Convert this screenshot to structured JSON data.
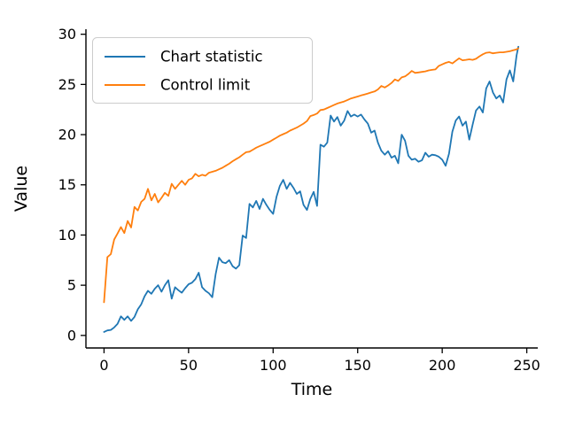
{
  "figure": {
    "background": "#ffffff",
    "text_color": "#000000",
    "axis_color": "#000000",
    "legend_border_color": "#cccccc",
    "legend_background": "#ffffff"
  },
  "chart_data": {
    "type": "line",
    "title": "",
    "xlabel": "Time",
    "ylabel": "Value",
    "xlim": [
      -10.7,
      256.5
    ],
    "ylim": [
      -1.25,
      30.5
    ],
    "xticks": [
      0,
      50,
      100,
      150,
      200,
      250
    ],
    "yticks": [
      0,
      5,
      10,
      15,
      20,
      25,
      30
    ],
    "grid": false,
    "legend": {
      "location": "upper left"
    },
    "x": [
      0,
      2,
      4,
      6,
      8,
      10,
      12,
      14,
      16,
      18,
      20,
      22,
      24,
      26,
      28,
      30,
      32,
      34,
      36,
      38,
      40,
      42,
      44,
      46,
      48,
      50,
      52,
      54,
      56,
      58,
      60,
      62,
      64,
      66,
      68,
      70,
      72,
      74,
      76,
      78,
      80,
      82,
      84,
      86,
      88,
      90,
      92,
      94,
      96,
      98,
      100,
      102,
      104,
      106,
      108,
      110,
      112,
      114,
      116,
      118,
      120,
      122,
      124,
      126,
      128,
      130,
      132,
      134,
      136,
      138,
      140,
      142,
      144,
      146,
      148,
      150,
      152,
      154,
      156,
      158,
      160,
      162,
      164,
      166,
      168,
      170,
      172,
      174,
      176,
      178,
      180,
      182,
      184,
      186,
      188,
      190,
      192,
      194,
      196,
      198,
      200,
      202,
      204,
      206,
      208,
      210,
      212,
      214,
      216,
      218,
      220,
      222,
      224,
      226,
      228,
      230,
      232,
      234,
      236,
      238,
      240,
      242,
      244,
      245
    ],
    "series": [
      {
        "name": "Chart statistic",
        "color": "#1f77b4",
        "values": [
          0.35,
          0.5,
          0.55,
          0.8,
          1.15,
          1.9,
          1.55,
          1.9,
          1.45,
          1.85,
          2.6,
          3.1,
          3.9,
          4.45,
          4.15,
          4.65,
          5.0,
          4.35,
          5.0,
          5.5,
          3.65,
          4.8,
          4.5,
          4.25,
          4.7,
          5.1,
          5.25,
          5.6,
          6.25,
          4.8,
          4.45,
          4.2,
          3.8,
          6.1,
          7.75,
          7.3,
          7.2,
          7.5,
          6.9,
          6.65,
          7.0,
          9.95,
          9.7,
          13.1,
          12.75,
          13.4,
          12.6,
          13.6,
          13.0,
          12.5,
          12.1,
          13.8,
          14.9,
          15.5,
          14.6,
          15.2,
          14.7,
          14.1,
          14.35,
          13.0,
          12.5,
          13.6,
          14.3,
          12.9,
          19.0,
          18.8,
          19.2,
          21.9,
          21.3,
          21.75,
          20.9,
          21.4,
          22.35,
          21.8,
          22.0,
          21.8,
          22.0,
          21.5,
          21.1,
          20.2,
          20.4,
          19.2,
          18.4,
          18.0,
          18.35,
          17.7,
          17.9,
          17.15,
          20.0,
          19.4,
          17.9,
          17.5,
          17.6,
          17.3,
          17.45,
          18.2,
          17.8,
          18.0,
          17.95,
          17.8,
          17.5,
          16.9,
          18.1,
          20.3,
          21.4,
          21.8,
          20.9,
          21.3,
          19.5,
          21.0,
          22.4,
          22.8,
          22.2,
          24.6,
          25.3,
          24.2,
          23.6,
          23.9,
          23.2,
          25.5,
          26.4,
          25.3,
          27.9,
          28.75
        ]
      },
      {
        "name": "Control limit",
        "color": "#ff7f0e",
        "values": [
          3.3,
          7.8,
          8.1,
          9.55,
          10.15,
          10.8,
          10.2,
          11.4,
          10.75,
          12.8,
          12.45,
          13.3,
          13.6,
          14.6,
          13.45,
          14.1,
          13.25,
          13.7,
          14.2,
          13.9,
          15.1,
          14.6,
          15.0,
          15.4,
          15.0,
          15.5,
          15.65,
          16.1,
          15.85,
          16.0,
          15.9,
          16.2,
          16.3,
          16.4,
          16.55,
          16.7,
          16.9,
          17.1,
          17.35,
          17.55,
          17.75,
          18.0,
          18.25,
          18.3,
          18.5,
          18.7,
          18.85,
          19.0,
          19.15,
          19.3,
          19.5,
          19.7,
          19.9,
          20.05,
          20.2,
          20.4,
          20.55,
          20.7,
          20.9,
          21.1,
          21.35,
          21.85,
          21.95,
          22.1,
          22.45,
          22.5,
          22.65,
          22.8,
          22.95,
          23.1,
          23.2,
          23.3,
          23.45,
          23.6,
          23.7,
          23.8,
          23.9,
          24.0,
          24.1,
          24.2,
          24.3,
          24.5,
          24.85,
          24.7,
          24.9,
          25.15,
          25.5,
          25.35,
          25.7,
          25.8,
          26.05,
          26.35,
          26.15,
          26.2,
          26.25,
          26.3,
          26.4,
          26.45,
          26.5,
          26.85,
          27.0,
          27.15,
          27.25,
          27.1,
          27.35,
          27.6,
          27.4,
          27.45,
          27.5,
          27.45,
          27.55,
          27.8,
          28.0,
          28.15,
          28.2,
          28.1,
          28.15,
          28.2,
          28.2,
          28.25,
          28.3,
          28.4,
          28.5,
          28.6
        ]
      }
    ]
  }
}
